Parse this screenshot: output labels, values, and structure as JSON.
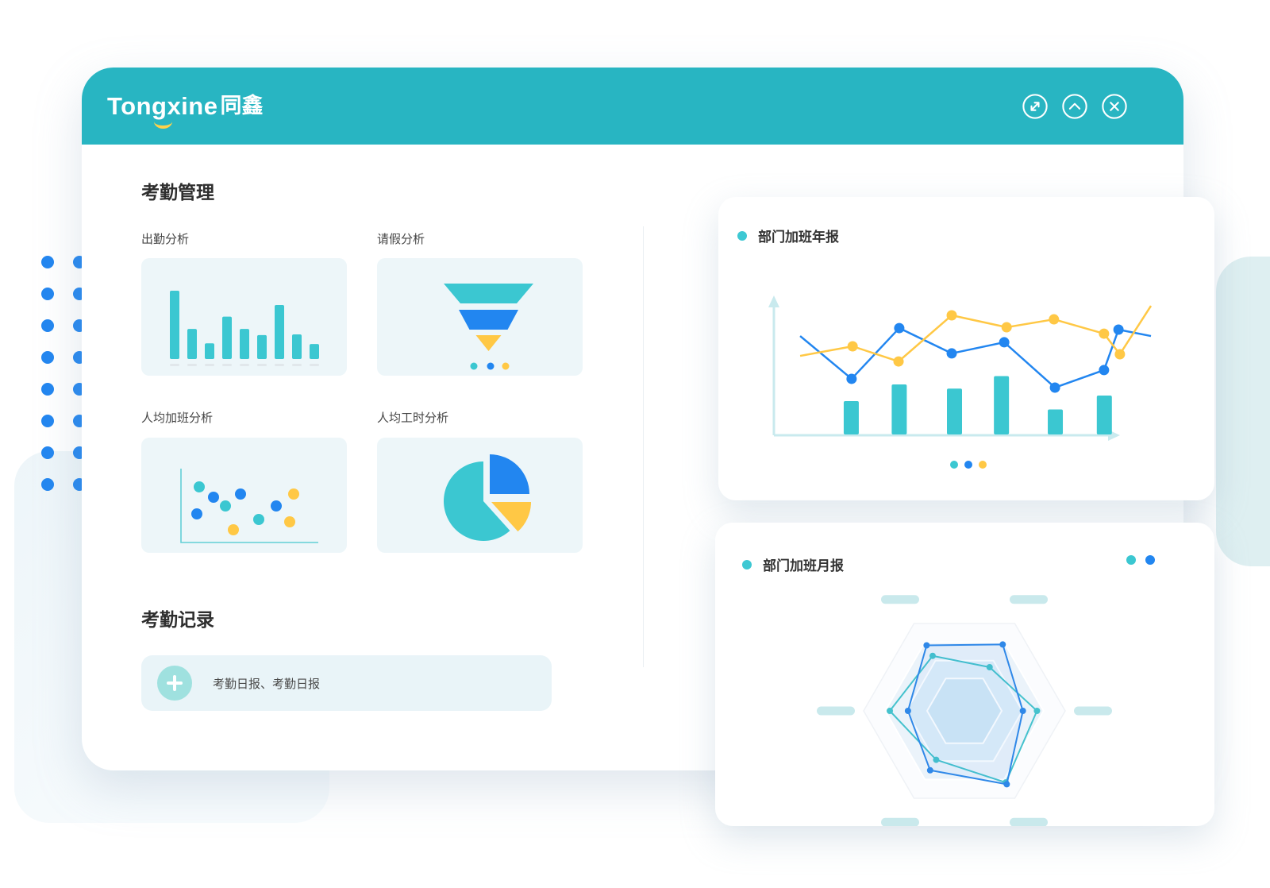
{
  "colors": {
    "header_teal": "#28B5C2",
    "teal": "#3BC7D1",
    "blue": "#2286F0",
    "yellow": "#FFC845",
    "light_teal_axis": "#C9EAEE",
    "thumb_bg": "#EDF6F9",
    "pill": "#C9E9EC",
    "radar_blue": "#2F88E8",
    "radar_teal": "#45C2CD"
  },
  "window": {
    "logo_text": "Tongxine",
    "logo_suffix": "同鑫",
    "controls": [
      {
        "name": "expand"
      },
      {
        "name": "collapse"
      },
      {
        "name": "close"
      }
    ]
  },
  "attendance": {
    "title": "考勤管理",
    "cards": [
      {
        "label": "出勤分析"
      },
      {
        "label": "请假分析"
      },
      {
        "label": "人均加班分析"
      },
      {
        "label": "人均工时分析"
      }
    ],
    "records": {
      "title": "考勤记录",
      "entry_label": "考勤日报、考勤日报"
    }
  },
  "panels": {
    "annual": {
      "title": "部门加班年报",
      "pager_dots": [
        "teal",
        "blue",
        "yellow"
      ]
    },
    "monthly": {
      "title": "部门加班月报",
      "corner_dots": [
        "teal",
        "blue"
      ]
    }
  },
  "decor": {
    "dot_grid": {
      "rows": 8,
      "cols": 2,
      "color_key": "blue"
    }
  },
  "chart_data": [
    {
      "id": "attendance-bars",
      "type": "bar",
      "title": "出勤分析",
      "bar_color": "teal",
      "values": [
        100,
        44,
        23,
        62,
        44,
        35,
        79,
        36,
        22
      ],
      "ylim": [
        0,
        100
      ],
      "note": "thumbnail sketch, unlabeled axes"
    },
    {
      "id": "leave-funnel",
      "type": "funnel",
      "title": "请假分析",
      "segments": [
        {
          "color": "teal",
          "top_width": 113,
          "bottom_width": 71
        },
        {
          "color": "blue",
          "top_width": 75,
          "bottom_width": 48
        },
        {
          "color": "yellow",
          "top_width": 32,
          "bottom_width": 0
        }
      ],
      "legend_dots": [
        "teal",
        "blue",
        "yellow"
      ]
    },
    {
      "id": "overtime-scatter",
      "type": "scatter",
      "title": "人均加班分析",
      "points": [
        {
          "x": 73,
          "y": 62,
          "color": "teal"
        },
        {
          "x": 91,
          "y": 75,
          "color": "blue"
        },
        {
          "x": 106,
          "y": 86,
          "color": "teal"
        },
        {
          "x": 125,
          "y": 71,
          "color": "blue"
        },
        {
          "x": 70,
          "y": 96,
          "color": "blue"
        },
        {
          "x": 148,
          "y": 103,
          "color": "teal"
        },
        {
          "x": 116,
          "y": 116,
          "color": "yellow"
        },
        {
          "x": 170,
          "y": 86,
          "color": "blue"
        },
        {
          "x": 192,
          "y": 71,
          "color": "yellow"
        },
        {
          "x": 187,
          "y": 106,
          "color": "yellow"
        }
      ]
    },
    {
      "id": "hours-pie",
      "type": "pie",
      "title": "人均工时分析",
      "slices": [
        {
          "color": "teal",
          "value": 62.5,
          "start_deg": 48,
          "end_deg": 270,
          "offset": [
            -3,
            3
          ]
        },
        {
          "color": "blue",
          "value": 25,
          "start_deg": -90,
          "end_deg": 0,
          "offset": [
            5,
            -6
          ]
        },
        {
          "color": "yellow",
          "value": 12.5,
          "start_deg": 0,
          "end_deg": 48,
          "offset": [
            7,
            4
          ]
        }
      ]
    },
    {
      "id": "annual-combo",
      "type": "combo",
      "title": "部门加班年报",
      "bars": {
        "color": "teal",
        "x": [
          0.224,
          0.363,
          0.523,
          0.659,
          0.815,
          0.957
        ],
        "heights": [
          0.24,
          0.36,
          0.33,
          0.42,
          0.18,
          0.28
        ]
      },
      "lines": [
        {
          "color": "blue",
          "points": [
            [
              0.076,
              0.714
            ],
            [
              0.225,
              0.406
            ],
            [
              0.363,
              0.771
            ],
            [
              0.515,
              0.589
            ],
            [
              0.667,
              0.669
            ],
            [
              0.814,
              0.343
            ],
            [
              0.956,
              0.469
            ],
            [
              0.998,
              0.76
            ],
            [
              1.092,
              0.714
            ]
          ]
        },
        {
          "color": "yellow",
          "points": [
            [
              0.076,
              0.571
            ],
            [
              0.228,
              0.64
            ],
            [
              0.361,
              0.531
            ],
            [
              0.515,
              0.863
            ],
            [
              0.674,
              0.777
            ],
            [
              0.811,
              0.834
            ],
            [
              0.956,
              0.731
            ],
            [
              1.002,
              0.583
            ],
            [
              1.092,
              0.931
            ]
          ]
        }
      ]
    },
    {
      "id": "monthly-radar",
      "type": "radar",
      "title": "部门加班月报",
      "axes": 6,
      "rings": [
        1.0,
        0.785,
        0.575,
        0.37
      ],
      "series": [
        {
          "color": "radar_teal",
          "values": [
            0.63,
            0.5,
            0.72,
            0.82,
            0.56,
            0.74
          ]
        },
        {
          "color": "radar_blue",
          "values": [
            0.75,
            0.76,
            0.58,
            0.84,
            0.68,
            0.56
          ]
        }
      ]
    }
  ]
}
